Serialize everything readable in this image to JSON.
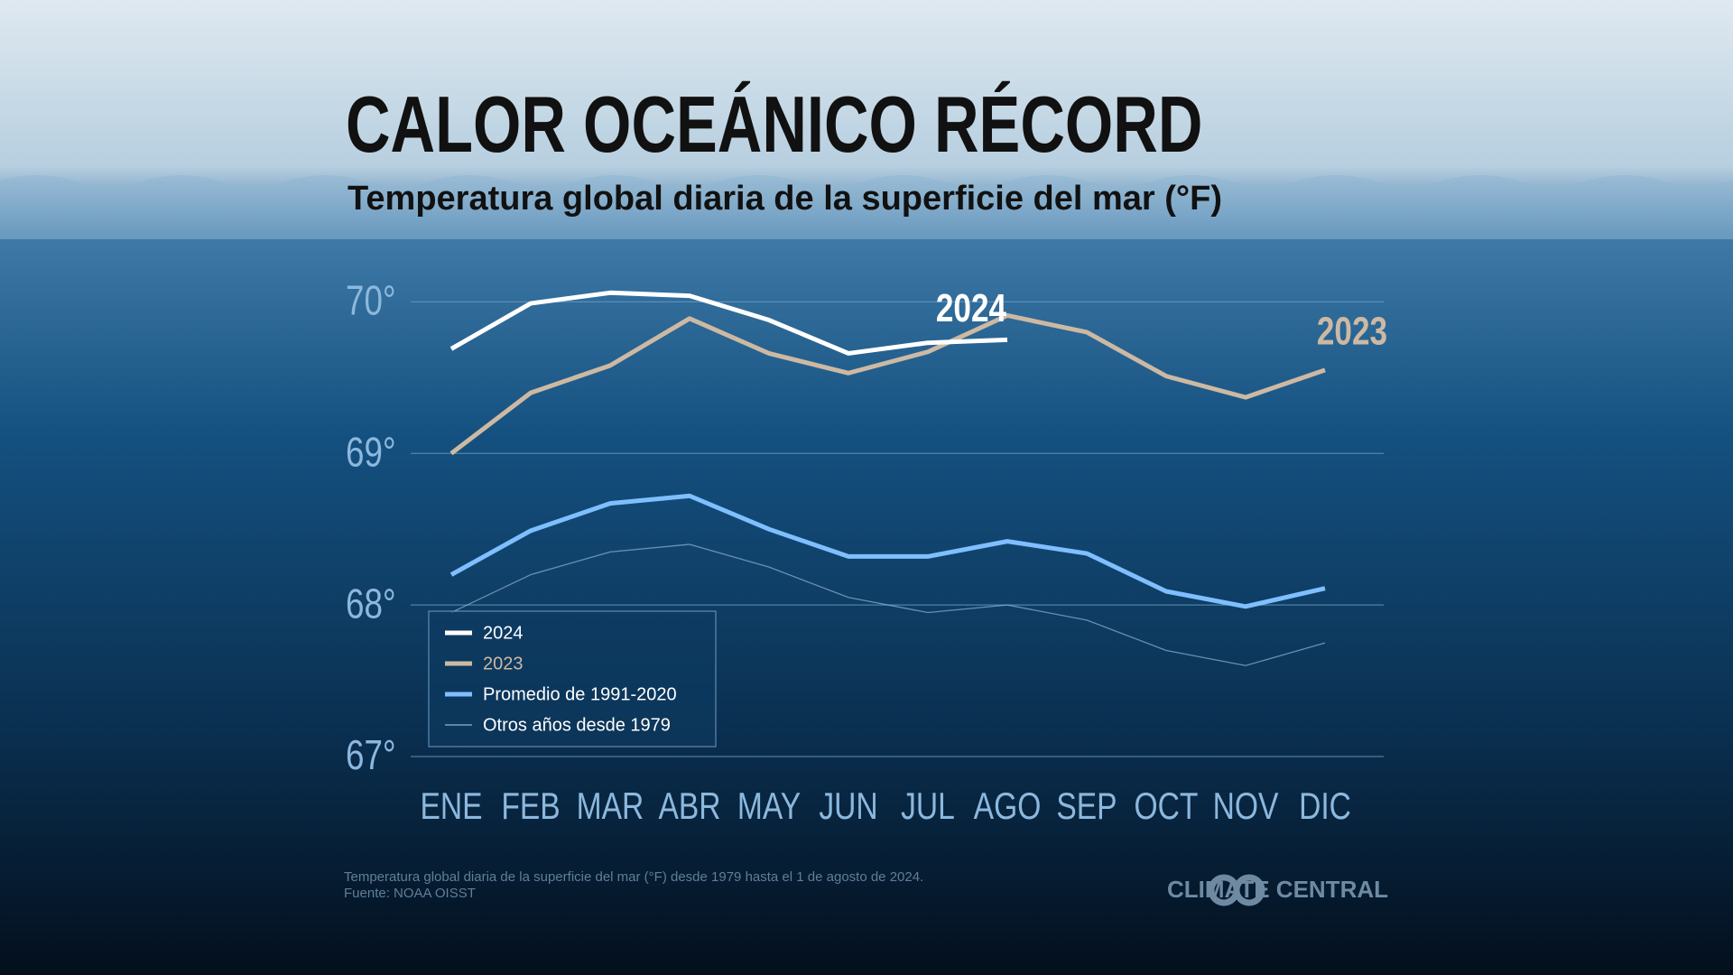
{
  "chart_data": {
    "type": "line",
    "title": "CALOR OCEÁNICO RÉCORD",
    "subtitle": "Temperatura global diaria de la superficie del mar (°F)",
    "categories": [
      "ENE",
      "FEB",
      "MAR",
      "ABR",
      "MAY",
      "JUN",
      "JUL",
      "AGO",
      "SEP",
      "OCT",
      "NOV",
      "DIC"
    ],
    "ylim": [
      67,
      70.3
    ],
    "yticks": [
      {
        "value": 67,
        "label": "67°"
      },
      {
        "value": 68,
        "label": "68°"
      },
      {
        "value": 69,
        "label": "69°"
      },
      {
        "value": 70,
        "label": "70°"
      }
    ],
    "grid": true,
    "legend": "bottom-left",
    "series": [
      {
        "name": "2024",
        "color": "#ffffff",
        "values": [
          69.69,
          69.99,
          70.06,
          70.04,
          69.88,
          69.66,
          69.73,
          69.75,
          null,
          null,
          null,
          null
        ]
      },
      {
        "name": "2023",
        "color": "#cdb9a3",
        "values": [
          69.0,
          69.4,
          69.58,
          69.89,
          69.66,
          69.53,
          69.67,
          69.91,
          69.8,
          69.51,
          69.37,
          69.55
        ]
      },
      {
        "name": "Promedio de 1991-2020",
        "color": "#7fbfff",
        "values": [
          68.2,
          68.49,
          68.67,
          68.72,
          68.5,
          68.32,
          68.32,
          68.42,
          68.34,
          68.09,
          67.99,
          68.11
        ]
      },
      {
        "name": "Otros años desde 1979",
        "color": "#8fb3d6",
        "values": [
          67.95,
          68.2,
          68.35,
          68.4,
          68.25,
          68.05,
          67.95,
          68.0,
          67.9,
          67.7,
          67.6,
          67.75
        ]
      }
    ],
    "footnote": "Temperatura global diaria de la superficie del mar (°F) desde 1979 hasta el 1 de agosto de 2024.",
    "source": "Fuente: NOAA OISST",
    "brand": "CLIMATE CENTRAL"
  }
}
